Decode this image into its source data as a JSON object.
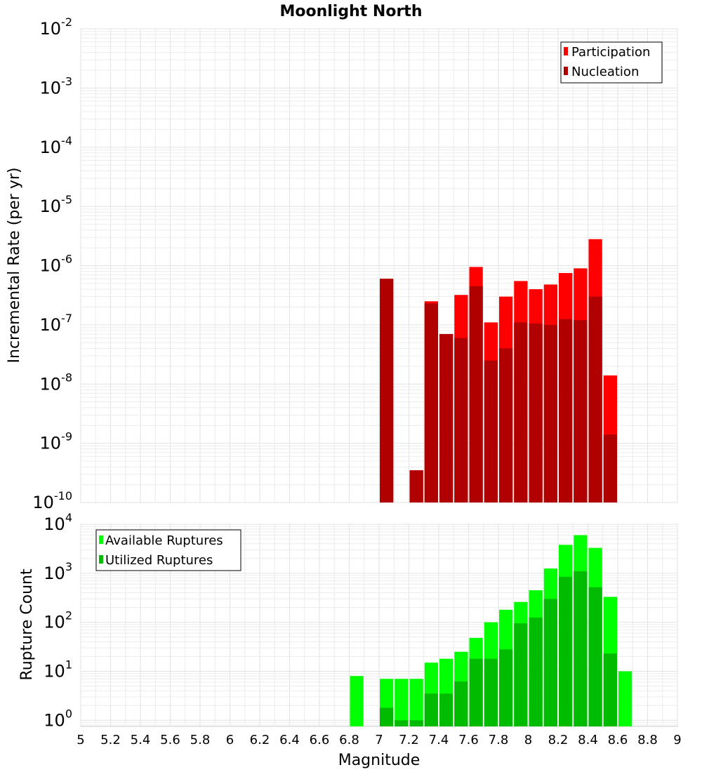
{
  "chart_data": [
    {
      "type": "bar",
      "title": "Moonlight North",
      "ylabel": "Incremental Rate (per yr)",
      "yscale": "log",
      "ylim": [
        1e-10,
        0.01
      ],
      "xlim": [
        5,
        9
      ],
      "bin_width": 0.1,
      "legend_position": "top-right",
      "x": [
        7.05,
        7.25,
        7.35,
        7.45,
        7.55,
        7.65,
        7.75,
        7.85,
        7.95,
        8.05,
        8.15,
        8.25,
        8.35,
        8.45,
        8.55
      ],
      "series": [
        {
          "name": "Participation",
          "color": "#ff0000",
          "values": [
            6e-07,
            3.5e-10,
            2.5e-07,
            7e-08,
            3.2e-07,
            9.5e-07,
            1.1e-07,
            3e-07,
            5.5e-07,
            4e-07,
            4.8e-07,
            7.5e-07,
            9e-07,
            2.8e-06,
            1.4e-08
          ]
        },
        {
          "name": "Nucleation",
          "color": "#b00000",
          "values": [
            6e-07,
            3.5e-10,
            2.3e-07,
            7e-08,
            6e-08,
            4.5e-07,
            2.5e-08,
            4e-08,
            1.1e-07,
            1.05e-07,
            1e-07,
            1.25e-07,
            1.2e-07,
            3e-07,
            1.4e-09
          ]
        }
      ]
    },
    {
      "type": "bar",
      "xlabel": "Magnitude",
      "ylabel": "Rupture Count",
      "yscale": "log",
      "ylim": [
        0.75,
        10000
      ],
      "xlim": [
        5,
        9
      ],
      "bin_width": 0.1,
      "legend_position": "top-left",
      "x": [
        6.85,
        7.05,
        7.15,
        7.25,
        7.35,
        7.45,
        7.55,
        7.65,
        7.75,
        7.85,
        7.95,
        8.05,
        8.15,
        8.25,
        8.35,
        8.45,
        8.55,
        8.65
      ],
      "series": [
        {
          "name": "Available Ruptures",
          "color": "#00ff00",
          "values": [
            8,
            7,
            7,
            7,
            15,
            18,
            25,
            48,
            100,
            180,
            260,
            450,
            1250,
            3800,
            6000,
            3300,
            330,
            10
          ]
        },
        {
          "name": "Utilized Ruptures",
          "color": "#00bb00",
          "values": [
            0,
            1.8,
            1,
            1,
            3.5,
            3.5,
            6.2,
            18,
            18,
            28,
            95,
            125,
            300,
            850,
            1100,
            520,
            23,
            0
          ]
        }
      ]
    }
  ],
  "ticks": {
    "x": [
      "5",
      "5.2",
      "5.4",
      "5.6",
      "5.8",
      "6",
      "6.2",
      "6.4",
      "6.6",
      "6.8",
      "7",
      "7.2",
      "7.4",
      "7.6",
      "7.8",
      "8",
      "8.2",
      "8.4",
      "8.6",
      "8.8",
      "9"
    ],
    "top_y_exponents": [
      "-2",
      "-3",
      "-4",
      "-5",
      "-6",
      "-7",
      "-8",
      "-9",
      "-10"
    ],
    "bottom_y_exponents": [
      "4",
      "3",
      "2",
      "1",
      "0"
    ],
    "base": "10"
  }
}
